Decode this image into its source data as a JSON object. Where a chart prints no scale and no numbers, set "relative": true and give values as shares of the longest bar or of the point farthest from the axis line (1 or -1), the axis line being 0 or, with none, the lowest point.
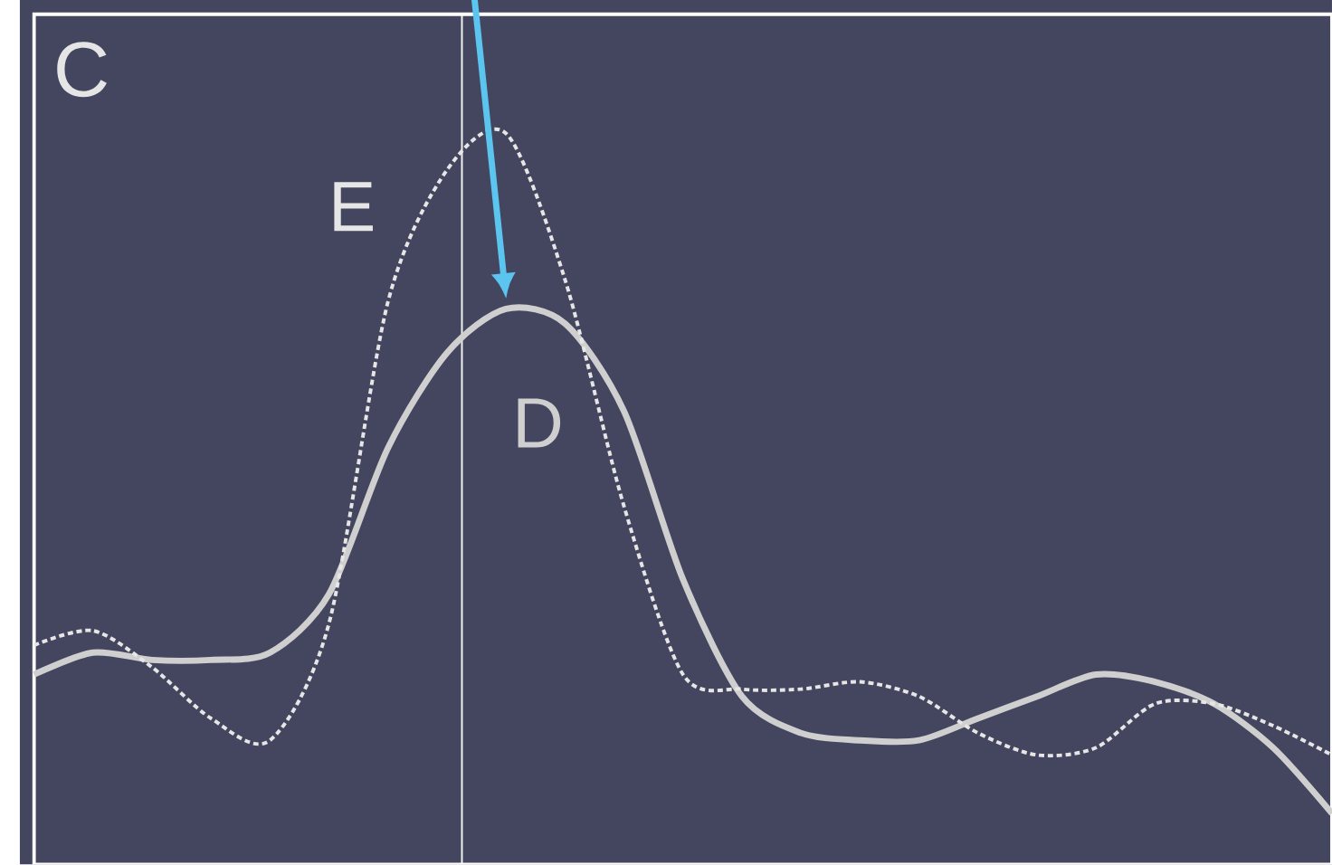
{
  "chart_data": {
    "type": "line",
    "title": "C",
    "relative": true,
    "marker": "none",
    "categories": [
      null,
      null,
      null,
      null,
      null,
      null,
      null,
      null,
      null,
      null,
      null,
      null,
      null,
      null,
      null,
      null,
      null,
      null,
      null,
      null,
      null,
      null,
      null
    ],
    "series": [
      {
        "name": "D",
        "color": "#cfcfcf",
        "line_style": "solid",
        "values": [
          0.26,
          0.29,
          0.28,
          0.28,
          0.29,
          0.37,
          0.57,
          0.7,
          0.76,
          0.74,
          0.62,
          0.39,
          0.23,
          0.18,
          0.17,
          0.17,
          0.2,
          0.23,
          0.26,
          0.25,
          0.22,
          0.16,
          0.07
        ]
      },
      {
        "name": "E",
        "color": "#e6e6e6",
        "line_style": "dashed",
        "values": [
          0.3,
          0.32,
          0.27,
          0.2,
          0.17,
          0.33,
          0.77,
          0.95,
          1.0,
          0.8,
          0.49,
          0.26,
          0.24,
          0.24,
          0.25,
          0.23,
          0.18,
          0.15,
          0.16,
          0.22,
          0.22,
          0.19,
          0.15
        ]
      }
    ]
  }
}
